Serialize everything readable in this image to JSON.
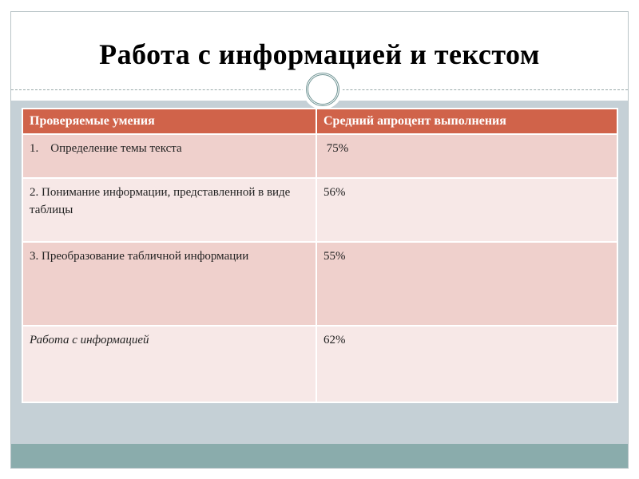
{
  "slide": {
    "title": "Работа с информацией и текстом"
  },
  "table": {
    "headers": [
      "Проверяемые умения",
      "Средний апроцент выполнения"
    ],
    "rows": [
      {
        "skill": "1.    Определение темы текста",
        "value": " 75%"
      },
      {
        "skill": "2. Понимание информации, представленной в виде таблицы",
        "value": "56%"
      },
      {
        "skill": "3. Преобразование табличной информации",
        "value": "55%"
      },
      {
        "skill": "Работа с информацией",
        "value": "62%"
      }
    ]
  },
  "colors": {
    "header": "#d0634a",
    "row_odd": "#efd0cc",
    "row_even": "#f7e8e7",
    "background": "#c5d0d6",
    "footer": "#8aacac"
  }
}
